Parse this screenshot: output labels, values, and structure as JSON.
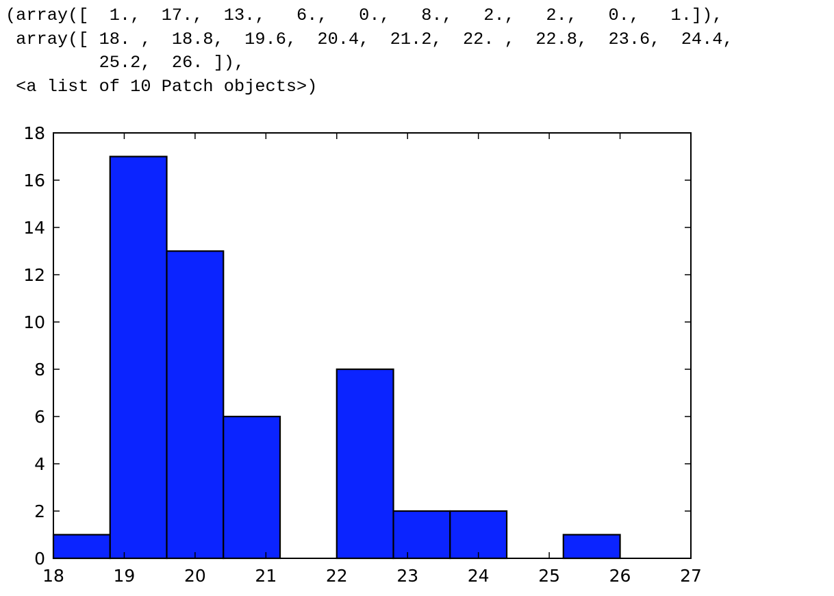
{
  "output": {
    "lines": [
      "(array([  1.,  17.,  13.,   6.,   0.,   8.,   2.,   2.,   0.,   1.]),",
      " array([ 18. ,  18.8,  19.6,  20.4,  21.2,  22. ,  22.8,  23.6,  24.4,",
      "         25.2,  26. ]),",
      " <a list of 10 Patch objects>)"
    ]
  },
  "colors": {
    "bar_fill": "#0b24ff",
    "bar_edge": "#000000",
    "axes": "#000000",
    "background": "#ffffff"
  },
  "chart_data": {
    "type": "bar",
    "subtype": "histogram",
    "bin_edges": [
      18.0,
      18.8,
      19.6,
      20.4,
      21.2,
      22.0,
      22.8,
      23.6,
      24.4,
      25.2,
      26.0
    ],
    "values": [
      1,
      17,
      13,
      6,
      0,
      8,
      2,
      2,
      0,
      1
    ],
    "xlim": [
      18,
      27
    ],
    "ylim": [
      0,
      18
    ],
    "xticks": [
      "18",
      "19",
      "20",
      "21",
      "22",
      "23",
      "24",
      "25",
      "26",
      "27"
    ],
    "yticks": [
      "0",
      "2",
      "4",
      "6",
      "8",
      "10",
      "12",
      "14",
      "16",
      "18"
    ],
    "title": "",
    "xlabel": "",
    "ylabel": "",
    "grid": false,
    "legend": "none"
  }
}
